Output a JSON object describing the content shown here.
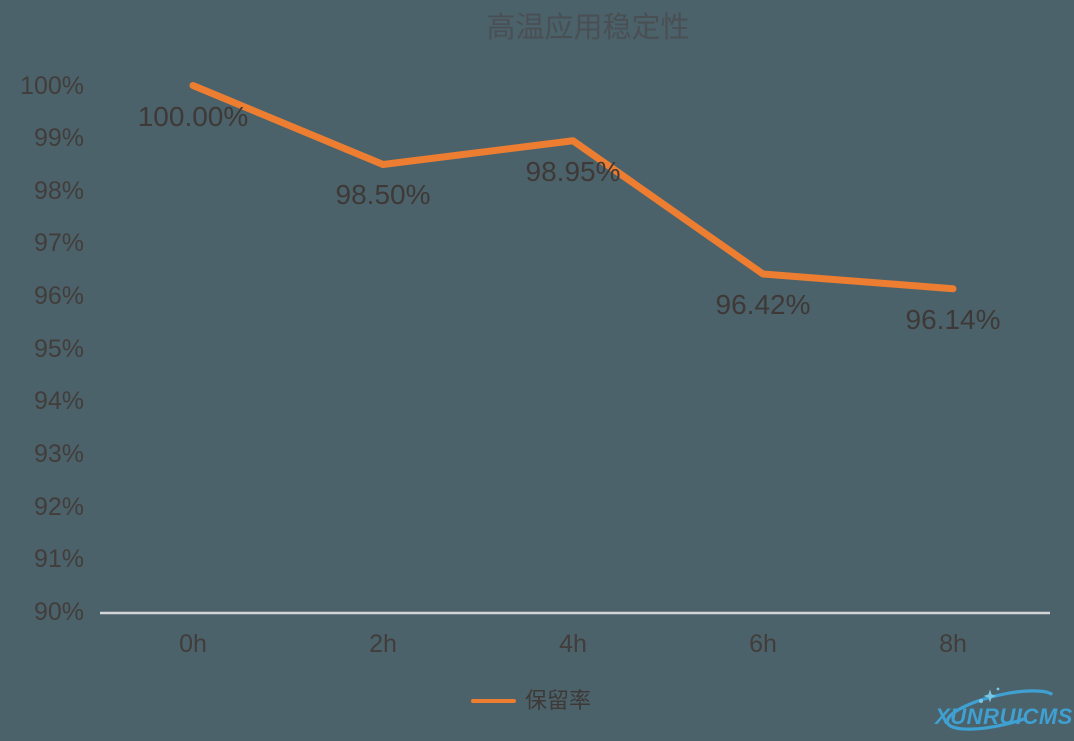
{
  "chart_data": {
    "type": "line",
    "title": "高温应用稳定性",
    "categories": [
      "0h",
      "2h",
      "4h",
      "6h",
      "8h"
    ],
    "series": [
      {
        "name": "保留率",
        "values": [
          100.0,
          98.5,
          98.95,
          96.42,
          96.14
        ]
      }
    ],
    "data_labels": [
      "100.00%",
      "98.50%",
      "98.95%",
      "96.42%",
      "96.14%"
    ],
    "y_ticks": [
      "100%",
      "99%",
      "98%",
      "97%",
      "96%",
      "95%",
      "94%",
      "93%",
      "92%",
      "91%",
      "90%"
    ],
    "ylim": [
      90,
      100
    ],
    "xlabel": "",
    "ylabel": "",
    "grid": false,
    "markers": false,
    "legend_position": "bottom"
  },
  "watermark": {
    "text": "XUNRUICMS"
  },
  "colors": {
    "background": "#4b626b",
    "line": "#ED7D31",
    "axis_line": "#d3d4d6",
    "title": "#4a4f54",
    "tick_label": "#423d3a",
    "data_label": "#3e3936",
    "legend_label": "#3e3936",
    "watermark": "#3fa0d2",
    "watermark_light": "#7cc6e4"
  }
}
